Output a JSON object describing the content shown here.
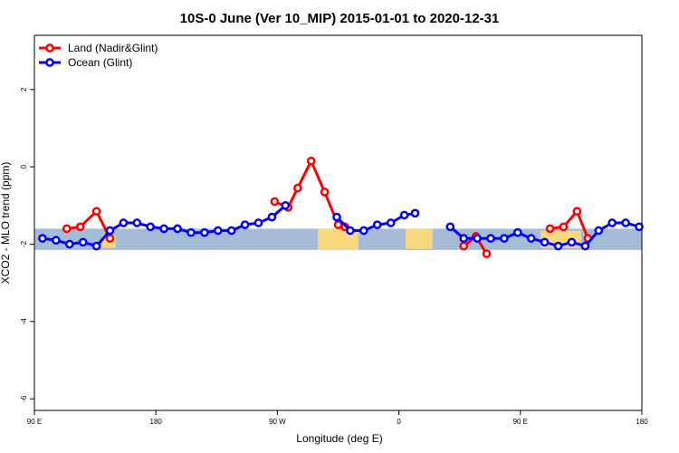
{
  "chart_data": {
    "type": "line",
    "title": "10S-0 June (Ver 10_MIP)   2015-01-01 to 2020-12-31",
    "xlabel": "Longitude (deg E)",
    "ylabel": "XCO2 - MLO trend (ppm)",
    "xlim": [
      90,
      540
    ],
    "ylim": [
      -6.3,
      3.4
    ],
    "xticks": [
      {
        "value": 90,
        "label": "90 E"
      },
      {
        "value": 180,
        "label": "180"
      },
      {
        "value": 270,
        "label": "90 W"
      },
      {
        "value": 360,
        "label": "0"
      },
      {
        "value": 450,
        "label": "90 E"
      },
      {
        "value": 540,
        "label": "180"
      }
    ],
    "yticks": [
      {
        "value": 2,
        "label": "2"
      },
      {
        "value": 0,
        "label": "0"
      },
      {
        "value": -2,
        "label": "-2"
      },
      {
        "value": -4,
        "label": "-4"
      },
      {
        "value": -6,
        "label": "-6"
      }
    ],
    "band": {
      "y_range": [
        -2.15,
        -1.6
      ],
      "color": "#a5bcd9",
      "land_color": "#f7d87f"
    },
    "legend_position": "top-left",
    "series": [
      {
        "name": "Land (Nadir&Glint)",
        "color": "#ff0000",
        "segments": [
          [
            [
              114,
              -1.6
            ],
            [
              124,
              -1.55
            ],
            [
              136,
              -1.15
            ],
            [
              146,
              -1.85
            ]
          ],
          [
            [
              268,
              -0.9
            ],
            [
              278,
              -1.05
            ],
            [
              285,
              -0.55
            ],
            [
              295,
              0.15
            ],
            [
              305,
              -0.65
            ],
            [
              315,
              -1.5
            ],
            [
              320,
              -1.55
            ]
          ],
          [
            [
              408,
              -2.05
            ],
            [
              417,
              -1.8
            ],
            [
              425,
              -2.25
            ]
          ],
          [
            [
              472,
              -1.6
            ],
            [
              482,
              -1.55
            ],
            [
              492,
              -1.15
            ],
            [
              500,
              -1.85
            ]
          ]
        ]
      },
      {
        "name": "Ocean (Glint)",
        "color": "#0000ff",
        "segments": [
          [
            [
              96,
              -1.85
            ],
            [
              106,
              -1.9
            ],
            [
              116,
              -2.0
            ],
            [
              126,
              -1.95
            ],
            [
              136,
              -2.05
            ],
            [
              146,
              -1.65
            ],
            [
              156,
              -1.45
            ],
            [
              166,
              -1.45
            ],
            [
              176,
              -1.55
            ],
            [
              186,
              -1.6
            ],
            [
              196,
              -1.6
            ],
            [
              206,
              -1.7
            ],
            [
              216,
              -1.7
            ],
            [
              226,
              -1.65
            ],
            [
              236,
              -1.65
            ],
            [
              246,
              -1.5
            ],
            [
              256,
              -1.45
            ],
            [
              266,
              -1.3
            ],
            [
              276,
              -1.0
            ]
          ],
          [
            [
              314,
              -1.3
            ],
            [
              324,
              -1.65
            ],
            [
              334,
              -1.65
            ],
            [
              344,
              -1.5
            ],
            [
              354,
              -1.45
            ],
            [
              364,
              -1.25
            ],
            [
              372,
              -1.2
            ]
          ],
          [
            [
              398,
              -1.55
            ],
            [
              408,
              -1.85
            ],
            [
              418,
              -1.85
            ],
            [
              428,
              -1.85
            ],
            [
              438,
              -1.85
            ],
            [
              448,
              -1.7
            ],
            [
              458,
              -1.85
            ],
            [
              468,
              -1.95
            ],
            [
              478,
              -2.05
            ],
            [
              488,
              -1.95
            ],
            [
              498,
              -2.05
            ],
            [
              508,
              -1.65
            ],
            [
              518,
              -1.45
            ],
            [
              528,
              -1.45
            ],
            [
              538,
              -1.55
            ]
          ]
        ]
      }
    ]
  }
}
